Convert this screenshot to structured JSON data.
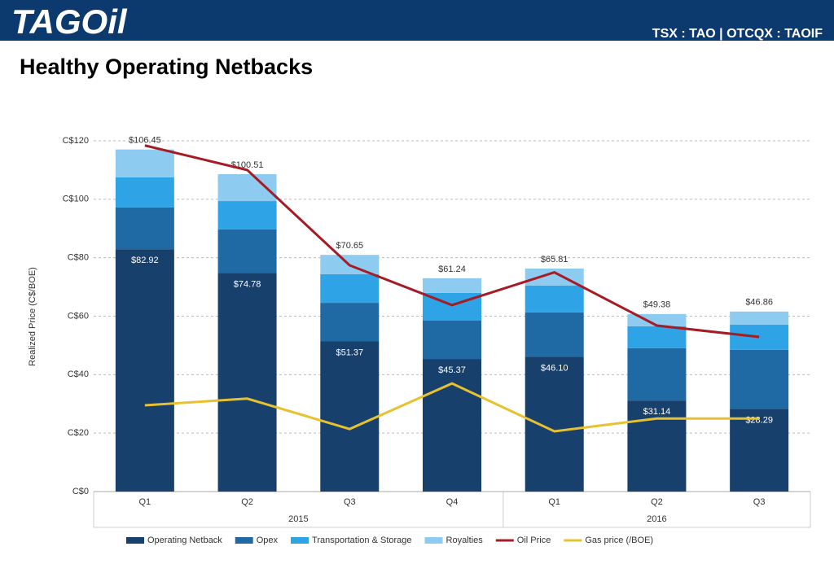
{
  "header": {
    "logo": "TAGOil",
    "tickers": "TSX : TAO | OTCQX : TAOIF"
  },
  "chart_data": {
    "type": "bar",
    "stacked": true,
    "title": "Healthy Operating Netbacks",
    "y_label": "Realized Price (C$/BOE)",
    "groups": [
      {
        "name": "2015",
        "quarters": [
          "Q1",
          "Q2",
          "Q3",
          "Q4"
        ]
      },
      {
        "name": "2016",
        "quarters": [
          "Q1",
          "Q2",
          "Q3"
        ]
      }
    ],
    "ylim": [
      0,
      120
    ],
    "yticks": [
      {
        "value": 0,
        "label": "C$0"
      },
      {
        "value": 20,
        "label": "C$20"
      },
      {
        "value": 40,
        "label": "C$40"
      },
      {
        "value": 60,
        "label": "C$60"
      },
      {
        "value": 80,
        "label": "C$80"
      },
      {
        "value": 100,
        "label": "C$100"
      },
      {
        "value": 120,
        "label": "C$120"
      }
    ],
    "grid": true,
    "series": [
      {
        "name": "Operating Netback",
        "type": "bar",
        "color": "#17406d",
        "values": [
          82.92,
          74.78,
          51.37,
          45.37,
          46.1,
          31.14,
          28.29
        ],
        "value_labels": [
          "$82.92",
          "$74.78",
          "$51.37",
          "$45.37",
          "$46.10",
          "$31.14",
          "$28.29"
        ]
      },
      {
        "name": "Opex",
        "type": "bar",
        "color": "#1f6aa5",
        "values": [
          14.3,
          14.9,
          13.2,
          13.1,
          15.2,
          17.9,
          20.2
        ]
      },
      {
        "name": "Transportation & Storage",
        "type": "bar",
        "color": "#2ea3e6",
        "values": [
          10.3,
          9.7,
          9.8,
          9.5,
          9.2,
          7.5,
          8.6
        ]
      },
      {
        "name": "Royalties",
        "type": "bar",
        "color": "#8ecbf0",
        "values": [
          9.5,
          9.2,
          6.6,
          5.0,
          5.8,
          4.2,
          4.5
        ]
      },
      {
        "name": "Oil Price",
        "type": "line",
        "color": "#a51c24",
        "values": [
          118.4,
          110,
          77.4,
          63.8,
          75,
          56.8,
          52.9
        ]
      },
      {
        "name": "Gas price (/BOE)",
        "type": "line",
        "color": "#e8c12e",
        "values": [
          29.5,
          31.8,
          21.4,
          37,
          20.6,
          25,
          25
        ]
      }
    ],
    "annotations": [
      "$106.45",
      "$100.51",
      "$70.65",
      "$61.24",
      "$65.81",
      "$49.38",
      "$46.86"
    ],
    "legend": "bottom"
  }
}
